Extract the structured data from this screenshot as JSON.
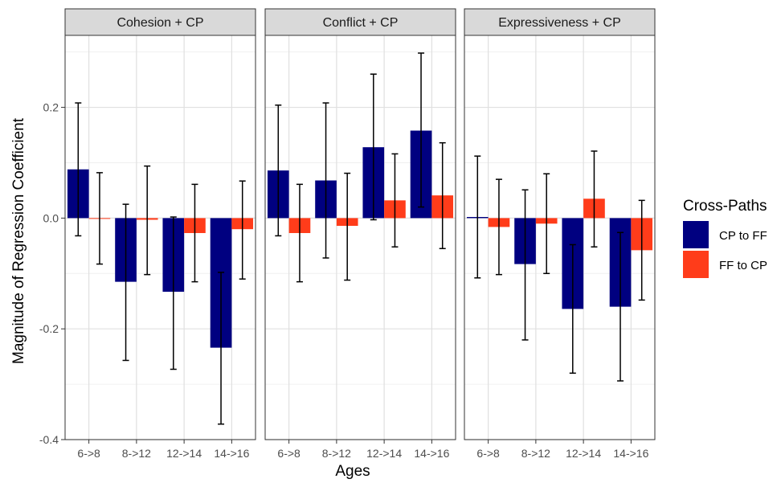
{
  "chart_data": {
    "type": "bar",
    "facets": [
      "Cohesion + CP",
      "Conflict + CP",
      "Expressiveness + CP"
    ],
    "categories": [
      "6->8",
      "8->12",
      "12->14",
      "14->16"
    ],
    "xlabel": "Ages",
    "ylabel": "Magnitude of Regression Coefficient",
    "ylim": [
      -0.4,
      0.33
    ],
    "yticks": [
      -0.4,
      -0.2,
      0.0,
      0.2
    ],
    "ytick_labels": [
      "-0.4",
      "-0.2",
      "0.0",
      "0.2"
    ],
    "grid": true,
    "legend": {
      "title": "Cross-Paths",
      "placement": "right",
      "entries": [
        "CP to FF",
        "FF to CP"
      ]
    },
    "colors": {
      "CP to FF": "#000080",
      "FF to CP": "#ff3c1a"
    },
    "panels": [
      {
        "facet": "Cohesion + CP",
        "series": [
          {
            "name": "CP to FF",
            "values": [
              0.088,
              -0.115,
              -0.133,
              -0.234
            ],
            "err_low": [
              -0.032,
              -0.257,
              -0.273,
              -0.372
            ],
            "err_high": [
              0.208,
              0.025,
              0.002,
              -0.098
            ]
          },
          {
            "name": "FF to CP",
            "values": [
              0.0,
              -0.003,
              -0.027,
              -0.02
            ],
            "err_low": [
              -0.083,
              -0.102,
              -0.115,
              -0.11
            ],
            "err_high": [
              0.082,
              0.094,
              0.061,
              0.067
            ]
          }
        ]
      },
      {
        "facet": "Conflict + CP",
        "series": [
          {
            "name": "CP to FF",
            "values": [
              0.086,
              0.068,
              0.128,
              0.158
            ],
            "err_low": [
              -0.032,
              -0.072,
              -0.003,
              0.02
            ],
            "err_high": [
              0.204,
              0.208,
              0.26,
              0.298
            ]
          },
          {
            "name": "FF to CP",
            "values": [
              -0.027,
              -0.014,
              0.032,
              0.041
            ],
            "err_low": [
              -0.115,
              -0.112,
              -0.052,
              -0.055
            ],
            "err_high": [
              0.061,
              0.081,
              0.116,
              0.136
            ]
          }
        ]
      },
      {
        "facet": "Expressiveness + CP",
        "series": [
          {
            "name": "CP to FF",
            "values": [
              0.002,
              -0.083,
              -0.164,
              -0.16
            ],
            "err_low": [
              -0.108,
              -0.22,
              -0.28,
              -0.294
            ],
            "err_high": [
              0.112,
              0.051,
              -0.048,
              -0.026
            ]
          },
          {
            "name": "FF to CP",
            "values": [
              -0.016,
              -0.01,
              0.035,
              -0.058
            ],
            "err_low": [
              -0.102,
              -0.1,
              -0.052,
              -0.148
            ],
            "err_high": [
              0.07,
              0.08,
              0.121,
              0.032
            ]
          }
        ]
      }
    ]
  }
}
